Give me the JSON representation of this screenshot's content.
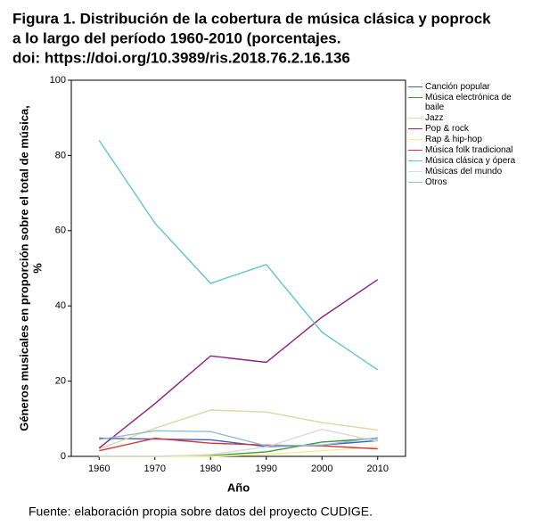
{
  "chart_data": {
    "type": "line",
    "title": [
      "Figura 1. Distribución de la cobertura de música clásica y poprock",
      "a lo largo del período 1960-2010 (porcentajes.",
      "doi: https://doi.org/10.3989/ris.2018.76.2.16.136"
    ],
    "xlabel": "Año",
    "ylabel": [
      "Géneros musicales en proporción sobre el total de música,",
      "%"
    ],
    "source": "Fuente: elaboración propia sobre datos del proyecto CUDIGE.",
    "x": [
      1960,
      1970,
      1980,
      1990,
      2000,
      2010
    ],
    "xlim": [
      1955,
      2015
    ],
    "xticks": [
      1960,
      1970,
      1980,
      1990,
      2000,
      2010
    ],
    "ylim": [
      0,
      100
    ],
    "yticks": [
      0,
      20,
      40,
      60,
      80,
      100
    ],
    "grid": false,
    "legend": "right",
    "series": [
      {
        "name": "Canción popular",
        "color": "#3f63ad",
        "values": [
          4.8,
          4.6,
          4.4,
          2.6,
          3.0,
          4.2
        ]
      },
      {
        "name": "Música electrónica de baile",
        "color": "#3a9a3a",
        "values": [
          0,
          0,
          0.2,
          1.2,
          3.8,
          4.8
        ]
      },
      {
        "name": "Jazz",
        "color": "#dcd6a4",
        "values": [
          2.0,
          7.5,
          12.3,
          11.8,
          9.0,
          7.0
        ]
      },
      {
        "name": "Pop & rock",
        "color": "#8e1f82",
        "values": [
          2.2,
          14,
          26.7,
          25,
          37,
          47
        ]
      },
      {
        "name": "Rap & hip-hop",
        "color": "#f3ee8c",
        "values": [
          0,
          0,
          0,
          0.5,
          1.5,
          2.5
        ]
      },
      {
        "name": "Música folk tradicional",
        "color": "#d3353f",
        "values": [
          1.5,
          4.8,
          3.5,
          3.0,
          2.8,
          2.0
        ]
      },
      {
        "name": "Música clásica y ópera",
        "color": "#62c5c9",
        "values": [
          84,
          62,
          46,
          51,
          33,
          23
        ]
      },
      {
        "name": "Músicas del mundo",
        "color": "#dadada",
        "values": [
          0,
          0,
          0.5,
          2.5,
          7.2,
          4.0
        ]
      },
      {
        "name": "Otros",
        "color": "#92bcd6",
        "values": [
          4.5,
          6.8,
          6.6,
          2.8,
          3.0,
          5.0
        ]
      }
    ]
  }
}
